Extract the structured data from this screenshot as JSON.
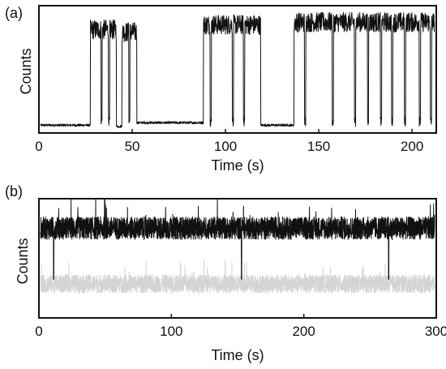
{
  "chart_data": [
    {
      "panel_label": "(a)",
      "type": "line",
      "xlabel": "Time (s)",
      "ylabel": "Counts",
      "xlim": [
        0,
        213
      ],
      "ylim": [
        0,
        1
      ],
      "xticks": [
        0,
        50,
        100,
        150,
        200
      ],
      "yticks": [],
      "grid": false,
      "legend": "none",
      "series_color": "#111111",
      "baseline_level": 0.06,
      "state_levels": [
        {
          "x_start": 0,
          "x_end": 27,
          "y": 0.05
        },
        {
          "x_start": 27,
          "x_end": 41,
          "y": 0.82
        },
        {
          "x_start": 41,
          "x_end": 44,
          "y": 0.04
        },
        {
          "x_start": 44,
          "x_end": 52,
          "y": 0.8
        },
        {
          "x_start": 52,
          "x_end": 88,
          "y": 0.07
        },
        {
          "x_start": 88,
          "x_end": 119,
          "y": 0.86
        },
        {
          "x_start": 119,
          "x_end": 137,
          "y": 0.05
        },
        {
          "x_start": 137,
          "x_end": 213,
          "y": 0.88
        }
      ],
      "dips_x": [
        33,
        37,
        48,
        92,
        104,
        110,
        143,
        158,
        170,
        177,
        184,
        190,
        197,
        205,
        211
      ]
    },
    {
      "panel_label": "(b)",
      "type": "line",
      "xlabel": "Time (s)",
      "ylabel": "Counts",
      "xlim": [
        0,
        300
      ],
      "ylim": [
        0,
        1
      ],
      "xticks": [
        0,
        100,
        200,
        300
      ],
      "yticks": [],
      "grid": false,
      "legend": "none",
      "series": [
        {
          "color": "#111111",
          "mean_level": 0.76,
          "noise": 0.1,
          "dips_x": [
            10,
            153,
            265
          ]
        },
        {
          "color": "#d4d4d4",
          "mean_level": 0.28,
          "noise": 0.08,
          "dips_x": []
        }
      ]
    }
  ]
}
